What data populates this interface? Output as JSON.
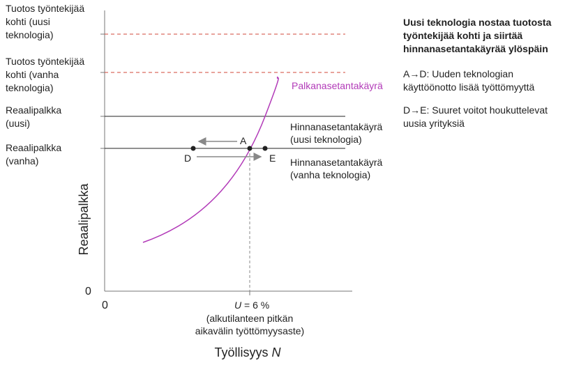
{
  "axis_labels": {
    "y": "Reaalipalkka",
    "x_text": "Työllisyys",
    "x_symbol": "N",
    "y_zero": "0",
    "x_zero": "0"
  },
  "left_labels": [
    [
      "Tuotos työntekijää",
      "kohti (uusi",
      "teknologia)"
    ],
    [
      "Tuotos työntekijää",
      "kohti (vanha",
      "teknologia)"
    ],
    [
      "Reaalipalkka",
      "(uusi)"
    ],
    [
      "Reaalipalkka",
      "(vanha)"
    ]
  ],
  "curve_labels": {
    "wage": "Palkanasetantakäyrä",
    "price_new": [
      "Hinnanasetantakäyrä",
      "(uusi teknologia)"
    ],
    "price_old": [
      "Hinnanasetantakäyrä",
      "(vanha teknologia)"
    ]
  },
  "points": {
    "A": "A",
    "D": "D",
    "E": "E"
  },
  "unemployment": {
    "symbol": "U",
    "text": "= 6 %",
    "note": [
      "(alkutilanteen pitkän",
      "aikavälin työttömyysaste)"
    ]
  },
  "side_panel": {
    "title": [
      "Uusi teknologia nostaa tuotosta",
      "työntekijää kohti ja siirtää",
      "hinnanasetantakäyrää ylöspäin"
    ],
    "notes": [
      [
        "A→D: Uuden teknologian",
        "käyttöönotto lisää työttömyyttä"
      ],
      [
        "D→E: Suuret voitot houkuttelevat",
        "uusia yrityksiä"
      ]
    ]
  }
}
